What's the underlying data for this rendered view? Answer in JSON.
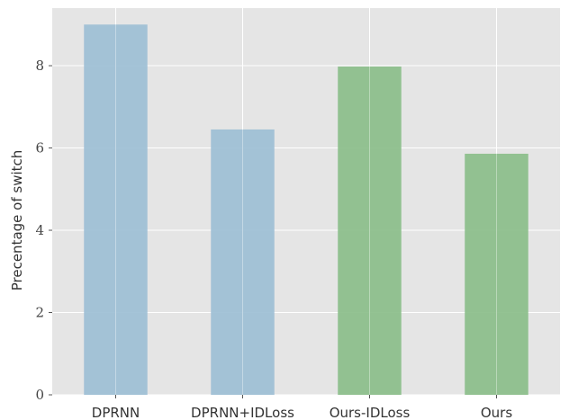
{
  "chart_data": {
    "type": "bar",
    "categories": [
      "DPRNN",
      "DPRNN+IDLoss",
      "Ours-IDLoss",
      "Ours"
    ],
    "values": [
      9.0,
      6.45,
      7.98,
      5.86
    ],
    "colors": [
      "#9dbfd5",
      "#9dbfd5",
      "#8bbe8a",
      "#8bbe8a"
    ],
    "ylabel": "Precentage of switch",
    "xlabel": "",
    "title": "",
    "ylim": [
      0,
      9.4
    ],
    "yticks": [
      0,
      2,
      4,
      6,
      8
    ],
    "grid": true,
    "background": "#e5e5e5",
    "grid_color": "#ffffff"
  }
}
